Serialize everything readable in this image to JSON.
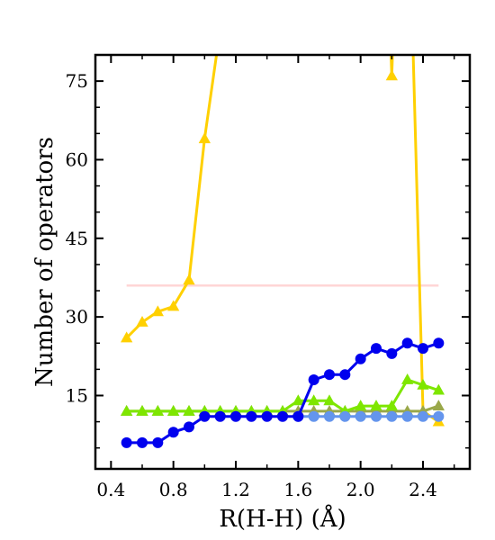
{
  "chart_data": {
    "type": "line",
    "xlabel": "R(H-H) (Å)",
    "ylabel": "Number of operators",
    "xlim": [
      0.3,
      2.7
    ],
    "ylim": [
      1,
      80
    ],
    "xticks": [
      0.4,
      0.8,
      1.2,
      1.6,
      2.0,
      2.4
    ],
    "xtick_labels": [
      "0.4",
      "0.8",
      "1.2",
      "1.6",
      "2.0",
      "2.4"
    ],
    "yticks": [
      15,
      30,
      45,
      60,
      75
    ],
    "ytick_labels": [
      "15",
      "30",
      "45",
      "60",
      "75"
    ],
    "grid": false,
    "reference_line": {
      "y": 36,
      "x": [
        0.5,
        2.5
      ],
      "color": "#ffd6d6"
    },
    "series": [
      {
        "color": "#ffd000",
        "marker": "triangle",
        "x": [
          0.5,
          0.6,
          0.7,
          0.8,
          0.9,
          1.0,
          1.1,
          1.2,
          2.15,
          2.2,
          2.25,
          2.3,
          2.4,
          2.5
        ],
        "y": [
          26,
          29,
          31,
          32,
          37,
          64,
          85,
          120,
          120,
          76,
          120,
          120,
          12,
          10
        ]
      },
      {
        "color": "#9aa84a",
        "marker": "triangle",
        "x": [
          0.5,
          0.6,
          0.7,
          0.8,
          0.9,
          1.0,
          1.1,
          1.2,
          1.3,
          1.4,
          1.5,
          1.6,
          1.7,
          1.8,
          1.9,
          2.0,
          2.1,
          2.2,
          2.3,
          2.4,
          2.5
        ],
        "y": [
          12,
          12,
          12,
          12,
          12,
          12,
          12,
          12,
          12,
          12,
          12,
          12,
          12,
          12,
          12,
          12,
          12,
          12,
          12,
          12,
          13
        ]
      },
      {
        "color": "#7ee600",
        "marker": "triangle",
        "x": [
          0.5,
          0.6,
          0.7,
          0.8,
          0.9,
          1.0,
          1.1,
          1.2,
          1.3,
          1.4,
          1.5,
          1.6,
          1.7,
          1.8,
          1.9,
          2.0,
          2.1,
          2.2,
          2.3,
          2.4,
          2.5
        ],
        "y": [
          12,
          12,
          12,
          12,
          12,
          12,
          12,
          12,
          12,
          12,
          12,
          14,
          14,
          14,
          12,
          13,
          13,
          13,
          18,
          17,
          16
        ]
      },
      {
        "color": "#6495ed",
        "marker": "circle",
        "x": [
          1.6,
          1.7,
          1.8,
          1.9,
          2.0,
          2.1,
          2.2,
          2.3,
          2.4,
          2.5
        ],
        "y": [
          11,
          11,
          11,
          11,
          11,
          11,
          11,
          11,
          11,
          11
        ]
      },
      {
        "color": "#0000ee",
        "marker": "circle",
        "x": [
          0.5,
          0.6,
          0.7,
          0.8,
          0.9,
          1.0,
          1.1,
          1.2,
          1.3,
          1.4,
          1.5,
          1.6,
          1.7,
          1.8,
          1.9,
          2.0,
          2.1,
          2.2,
          2.3,
          2.4,
          2.5
        ],
        "y": [
          6,
          6,
          6,
          8,
          9,
          11,
          11,
          11,
          11,
          11,
          11,
          11,
          18,
          19,
          19,
          22,
          24,
          23,
          25,
          24,
          25
        ]
      }
    ]
  }
}
